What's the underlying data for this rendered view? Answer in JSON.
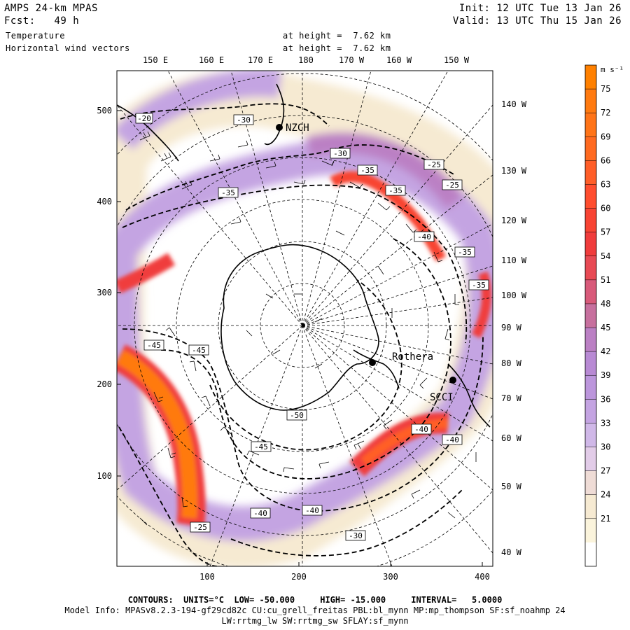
{
  "header": {
    "model": "AMPS 24-km MPAS",
    "fcst_label": "Fcst:",
    "fcst_value": "49 h",
    "var1": "Temperature",
    "var2": "Horizontal wind vectors",
    "height1": "at height =  7.62 km",
    "height2": "at height =  7.62 km",
    "init": "Init: 12 UTC Tue 13 Jan 26",
    "valid": "Valid: 13 UTC Thu 15 Jan 26"
  },
  "top_lon_labels": [
    "150 E",
    "160 E",
    "170 E",
    "180",
    "170 W",
    "160 W",
    "150 W"
  ],
  "right_lon_labels": [
    "140 W",
    "130 W",
    "120 W",
    "110 W",
    "100 W",
    "90 W",
    "80 W",
    "70 W",
    "60 W",
    "50 W",
    "40 W"
  ],
  "y_ticks": [
    "500",
    "400",
    "300",
    "200",
    "100"
  ],
  "x_ticks": [
    "100",
    "200",
    "300",
    "400"
  ],
  "contour_labels": [
    "-20",
    "-30",
    "-30",
    "-35",
    "-25",
    "-25",
    "-35",
    "-35",
    "-40",
    "-35",
    "-35",
    "-45",
    "-45",
    "-50",
    "-45",
    "-40",
    "-40",
    "-40",
    "-30",
    "-25",
    "-40"
  ],
  "stations": [
    "NZCH",
    "Rothera",
    "SCCI"
  ],
  "colorbar": {
    "unit": "m s⁻¹",
    "labels": [
      "75",
      "72",
      "69",
      "66",
      "63",
      "60",
      "57",
      "54",
      "51",
      "48",
      "45",
      "42",
      "39",
      "36",
      "33",
      "30",
      "27",
      "24",
      "21"
    ],
    "colors": [
      "#ff8000",
      "#ff7a10",
      "#ff7418",
      "#ff6a20",
      "#ff5e28",
      "#ff4d2e",
      "#f84433",
      "#f03c3c",
      "#e84a54",
      "#d85a7a",
      "#c7709e",
      "#bb80c4",
      "#b88ad4",
      "#bc96dc",
      "#c4a4e2",
      "#d0b8e8",
      "#e2cce8",
      "#efdcd6",
      "#f6ead2",
      "#fbf4dc",
      "#ffffff"
    ]
  },
  "footer": {
    "line1": "CONTOURS:  UNITS=°C  LOW= -50.000     HIGH= -15.000     INTERVAL=   5.0000",
    "line2": "Model Info: MPASv8.2.3-194-gf29cd82c CU:cu_grell_freitas PBL:bl_mynn MP:mp_thompson SF:sf_noahmp 24",
    "line3": "LW:rrtmg_lw SW:rrtmg_sw SFLAY:sf_mynn"
  }
}
